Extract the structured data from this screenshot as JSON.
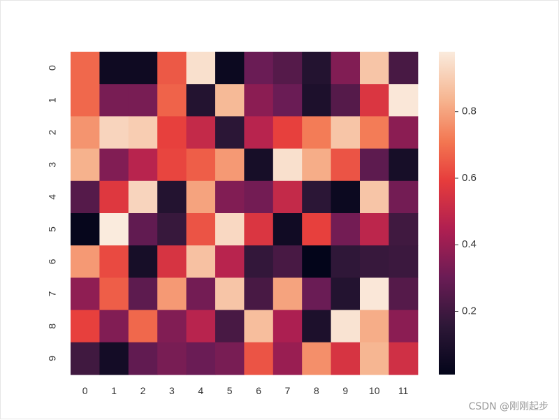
{
  "chart_data": {
    "type": "heatmap",
    "x_labels": [
      "0",
      "1",
      "2",
      "3",
      "4",
      "5",
      "6",
      "7",
      "8",
      "9",
      "10",
      "11"
    ],
    "y_labels": [
      "0",
      "1",
      "2",
      "3",
      "4",
      "5",
      "6",
      "7",
      "8",
      "9"
    ],
    "values": [
      [
        0.68,
        0.05,
        0.05,
        0.65,
        0.95,
        0.04,
        0.3,
        0.25,
        0.12,
        0.35,
        0.88,
        0.22
      ],
      [
        0.68,
        0.33,
        0.33,
        0.67,
        0.12,
        0.85,
        0.37,
        0.3,
        0.1,
        0.25,
        0.56,
        0.97
      ],
      [
        0.77,
        0.92,
        0.9,
        0.6,
        0.5,
        0.15,
        0.47,
        0.6,
        0.72,
        0.88,
        0.72,
        0.37
      ],
      [
        0.83,
        0.35,
        0.47,
        0.61,
        0.66,
        0.78,
        0.08,
        0.95,
        0.82,
        0.64,
        0.27,
        0.08
      ],
      [
        0.25,
        0.57,
        0.92,
        0.12,
        0.8,
        0.35,
        0.32,
        0.5,
        0.15,
        0.04,
        0.88,
        0.32
      ],
      [
        0.02,
        0.98,
        0.28,
        0.18,
        0.64,
        0.93,
        0.56,
        0.06,
        0.6,
        0.32,
        0.48,
        0.2
      ],
      [
        0.78,
        0.62,
        0.08,
        0.55,
        0.87,
        0.47,
        0.17,
        0.22,
        0.01,
        0.16,
        0.18,
        0.19
      ],
      [
        0.38,
        0.66,
        0.27,
        0.78,
        0.32,
        0.88,
        0.22,
        0.8,
        0.3,
        0.12,
        0.97,
        0.25
      ],
      [
        0.6,
        0.35,
        0.68,
        0.35,
        0.47,
        0.22,
        0.86,
        0.44,
        0.1,
        0.96,
        0.82,
        0.37
      ],
      [
        0.2,
        0.07,
        0.28,
        0.33,
        0.3,
        0.33,
        0.64,
        0.4,
        0.76,
        0.55,
        0.84,
        0.53
      ]
    ],
    "colorbar": {
      "ticks": [
        "0.2",
        "0.4",
        "0.6",
        "0.8"
      ],
      "tick_values": [
        0.2,
        0.4,
        0.6,
        0.8
      ],
      "range": [
        0.01,
        0.98
      ]
    },
    "colormap": "rocket",
    "grid": false,
    "title": "",
    "xlabel": "",
    "ylabel": ""
  },
  "watermark": "CSDN @刚刚起步"
}
